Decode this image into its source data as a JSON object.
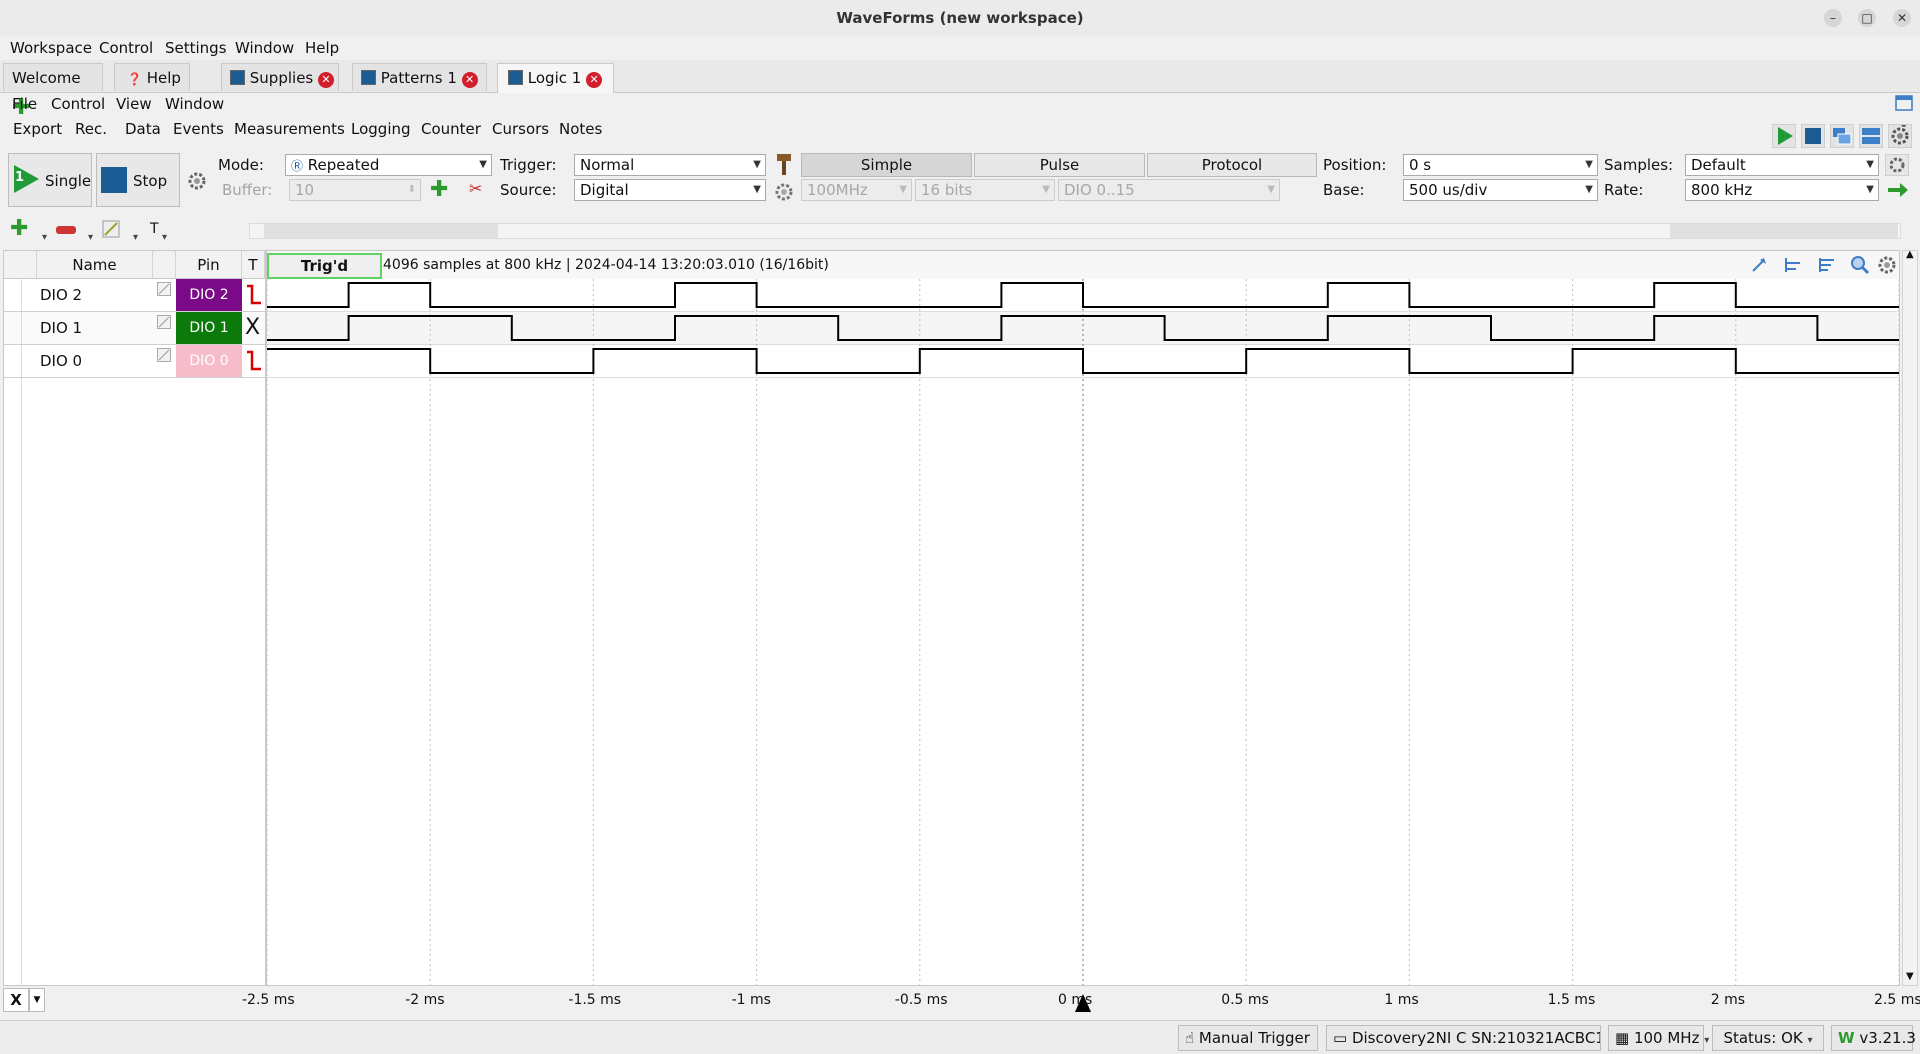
{
  "window": {
    "title": "WaveForms (new workspace)"
  },
  "menubar": [
    "Workspace",
    "Control",
    "Settings",
    "Window",
    "Help"
  ],
  "tabs": [
    {
      "label": "Welcome"
    },
    {
      "label": "Help"
    },
    {
      "label": "Supplies"
    },
    {
      "label": "Patterns 1"
    },
    {
      "label": "Logic 1"
    }
  ],
  "instrument_menu": [
    "File",
    "Control",
    "View",
    "Window"
  ],
  "instrument_toolbar": [
    "Export",
    "Rec.",
    "Data",
    "Events",
    "Measurements",
    "Logging",
    "Counter",
    "Cursors",
    "Notes"
  ],
  "acquisition": {
    "single_label": "Single",
    "single_badge": "1",
    "stop_label": "Stop",
    "mode_label": "Mode:",
    "mode_value": "Repeated",
    "buffer_label": "Buffer:",
    "buffer_value": "10",
    "trigger_label": "Trigger:",
    "trigger_value": "Normal",
    "source_label": "Source:",
    "source_value": "Digital",
    "trigger_types": [
      "Simple",
      "Pulse",
      "Protocol"
    ],
    "clock_value": "100MHz",
    "bits_value": "16 bits",
    "dio_range_value": "DIO 0..15",
    "position_label": "Position:",
    "position_value": "0 s",
    "base_label": "Base:",
    "base_value": "500 us/div",
    "samples_label": "Samples:",
    "samples_value": "Default",
    "rate_label": "Rate:",
    "rate_value": "800 kHz"
  },
  "channel_table": {
    "headers": {
      "name": "Name",
      "pin": "Pin",
      "trigger": "T"
    },
    "rows": [
      {
        "name": "DIO 2",
        "pin": "DIO  2",
        "pin_color": "#7b0a88",
        "trigger": "falling-edge"
      },
      {
        "name": "DIO 1",
        "pin": "DIO  1",
        "pin_color": "#0b7a0b",
        "trigger": "X"
      },
      {
        "name": "DIO 0",
        "pin": "DIO  0",
        "pin_color": "#f7bcc9",
        "trigger": "falling-edge"
      }
    ]
  },
  "plot": {
    "trig_status": "Trig'd",
    "info": "4096 samples at 800 kHz | 2024-04-14 13:20:03.010 (16/16bit)",
    "x_ticks": [
      "-2.5 ms",
      "-2 ms",
      "-1.5 ms",
      "-1 ms",
      "-0.5 ms",
      "0 ms",
      "0.5 ms",
      "1 ms",
      "1.5 ms",
      "2 ms",
      "2.5 ms"
    ],
    "x_unit": "ms",
    "x_range_ms": [
      -2.5,
      2.5
    ],
    "signals": [
      {
        "name": "DIO 2",
        "start_level": 0,
        "edges_ms": [
          -2.25,
          -2.0,
          -1.25,
          -1.0,
          -0.25,
          0.0,
          0.75,
          1.0,
          1.75,
          2.0
        ]
      },
      {
        "name": "DIO 1",
        "start_level": 0,
        "edges_ms": [
          -2.25,
          -1.75,
          -1.25,
          -0.75,
          -0.25,
          0.25,
          0.75,
          1.25,
          1.75,
          2.25
        ]
      },
      {
        "name": "DIO 0",
        "start_level": 1,
        "edges_ms": [
          -2.0,
          -1.5,
          -1.0,
          -0.5,
          0.0,
          0.5,
          1.0,
          1.5,
          2.0
        ]
      }
    ]
  },
  "x_selector": "X",
  "statusbar": {
    "manual_trigger": "Manual Trigger",
    "device": "Discovery2NI C SN:210321ACBC12",
    "clock": "100 MHz",
    "status": "Status: OK",
    "version": "v3.21.3"
  },
  "colors": {
    "accent_green": "#2d9a2d",
    "close_red": "#d11f2c",
    "trig_border": "#5fd35f",
    "trigger_edge": "#d80000"
  }
}
